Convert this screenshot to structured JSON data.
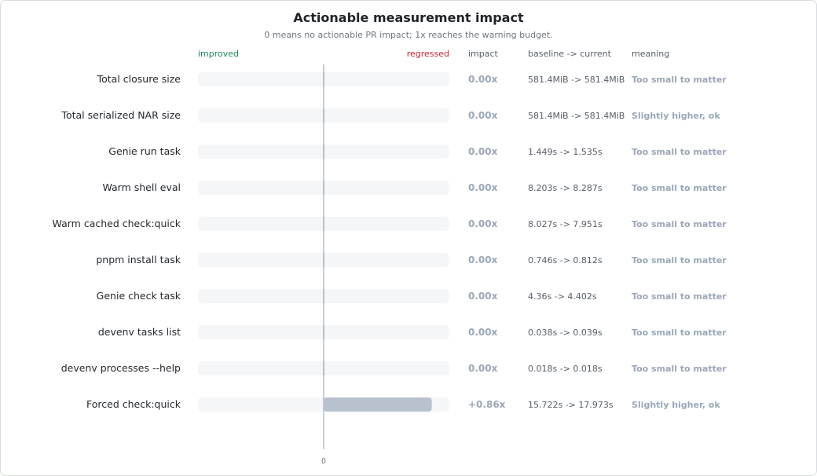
{
  "chart_data": {
    "type": "bar",
    "orientation": "horizontal",
    "title": "Actionable measurement impact",
    "subtitle": "0 means no actionable PR impact; 1x reaches the warning budget.",
    "axis_direction_labels": {
      "negative": "improved",
      "positive": "regressed"
    },
    "xlim": [
      -1.0,
      1.0
    ],
    "x_tick_labels": [
      "0"
    ],
    "columns": {
      "impact": "impact",
      "baseline": "baseline -> current",
      "meaning": "meaning"
    },
    "rows": [
      {
        "label": "Total closure size",
        "value": 0.0,
        "impact": "0.00x",
        "baseline": "581.4MiB -> 581.4MiB",
        "meaning": "Too small to matter"
      },
      {
        "label": "Total serialized NAR size",
        "value": 0.0,
        "impact": "0.00x",
        "baseline": "581.4MiB -> 581.4MiB",
        "meaning": "Slightly higher, ok"
      },
      {
        "label": "Genie run task",
        "value": 0.0,
        "impact": "0.00x",
        "baseline": "1.449s -> 1.535s",
        "meaning": "Too small to matter"
      },
      {
        "label": "Warm shell eval",
        "value": 0.0,
        "impact": "0.00x",
        "baseline": "8.203s -> 8.287s",
        "meaning": "Too small to matter"
      },
      {
        "label": "Warm cached check:quick",
        "value": 0.0,
        "impact": "0.00x",
        "baseline": "8.027s -> 7.951s",
        "meaning": "Too small to matter"
      },
      {
        "label": "pnpm install task",
        "value": 0.0,
        "impact": "0.00x",
        "baseline": "0.746s -> 0.812s",
        "meaning": "Too small to matter"
      },
      {
        "label": "Genie check task",
        "value": 0.0,
        "impact": "0.00x",
        "baseline": "4.36s -> 4.402s",
        "meaning": "Too small to matter"
      },
      {
        "label": "devenv tasks list",
        "value": 0.0,
        "impact": "0.00x",
        "baseline": "0.038s -> 0.039s",
        "meaning": "Too small to matter"
      },
      {
        "label": "devenv processes --help",
        "value": 0.0,
        "impact": "0.00x",
        "baseline": "0.018s -> 0.018s",
        "meaning": "Too small to matter"
      },
      {
        "label": "Forced check:quick",
        "value": 0.86,
        "impact": "+0.86x",
        "baseline": "15.722s -> 17.973s",
        "meaning": "Slightly higher, ok"
      }
    ],
    "colors": {
      "track": "#f5f6f8",
      "bar": "#b8c2cf",
      "axis": "#b7bec8",
      "improved": "#1a8a5a",
      "regressed": "#d1242f",
      "muted_value": "#9aa7b8"
    },
    "grid": false,
    "legend": "none"
  }
}
